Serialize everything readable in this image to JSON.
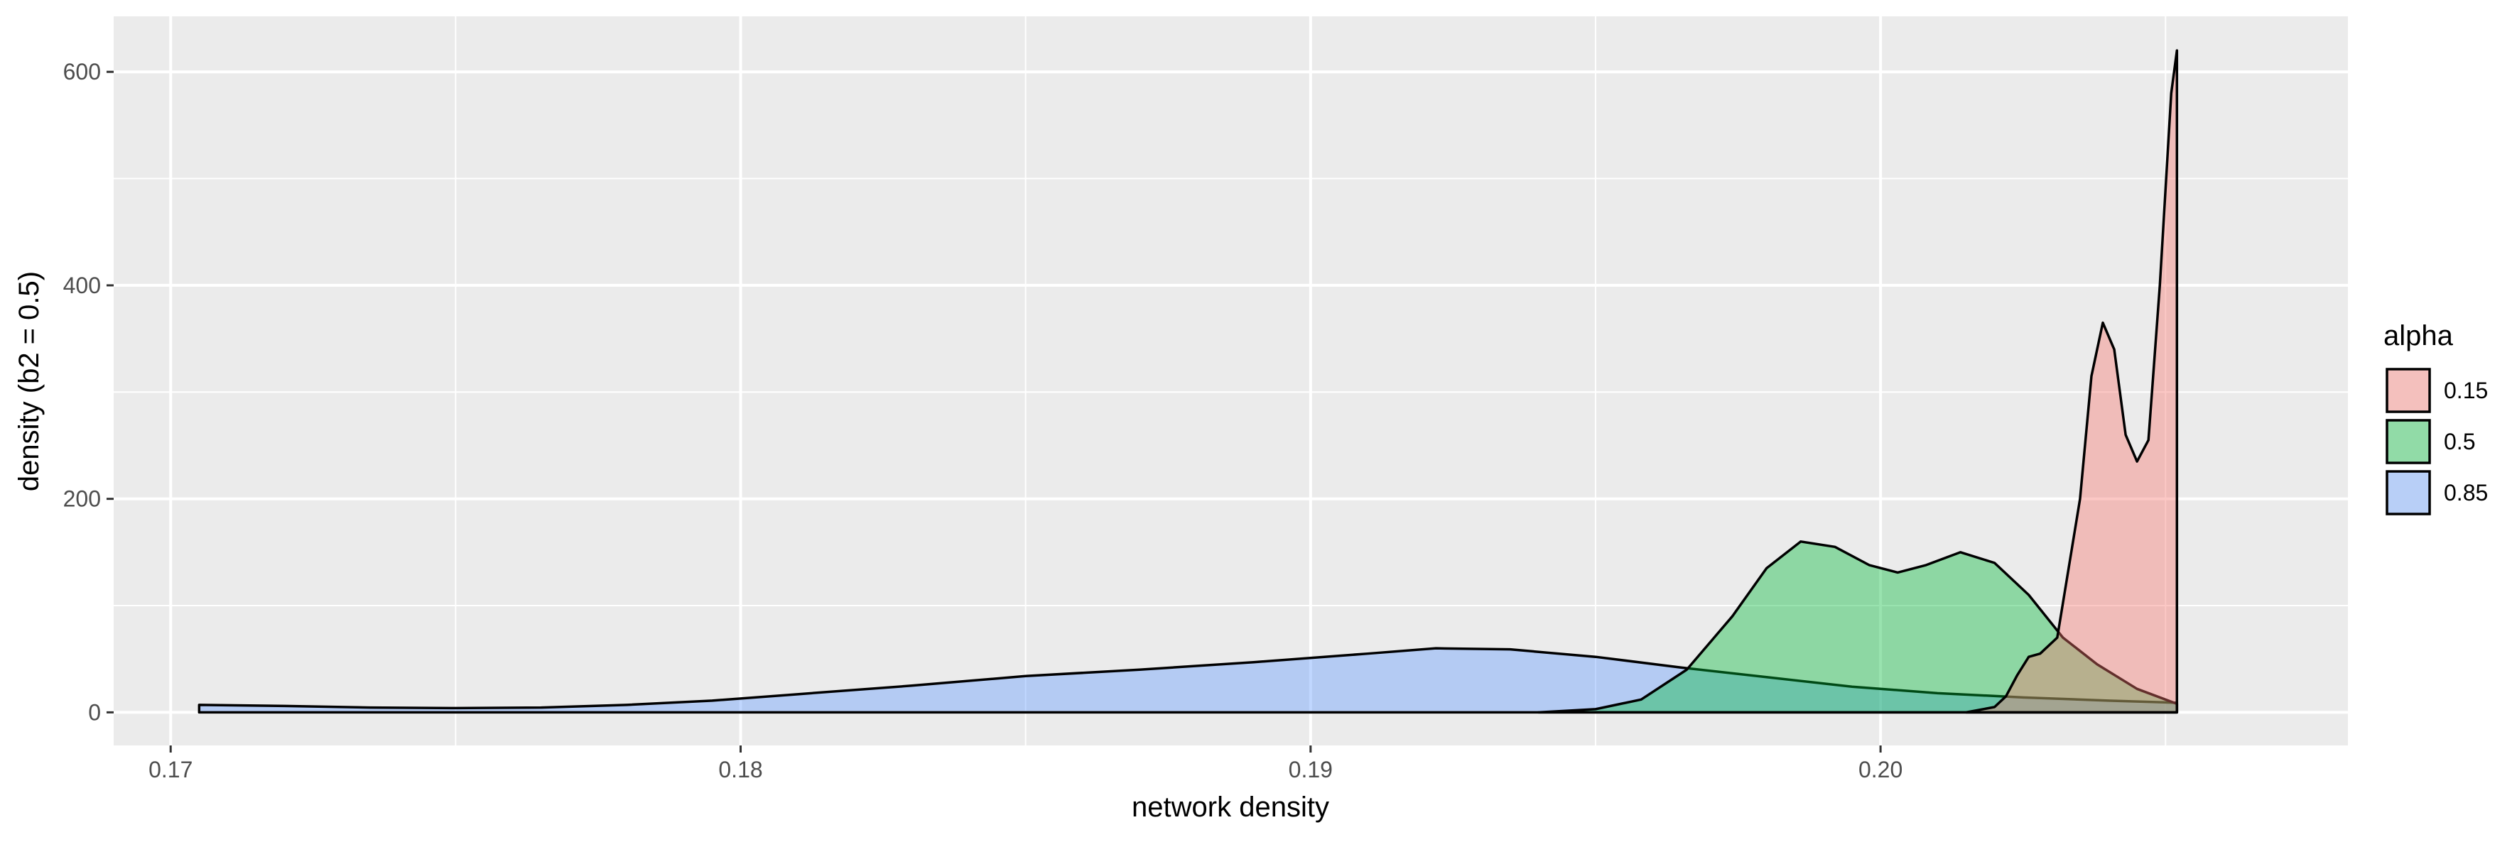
{
  "chart_data": {
    "type": "area",
    "xlabel": "network density",
    "ylabel": "density (b2 = 0.5)",
    "xlim": [
      0.169,
      0.2082
    ],
    "ylim": [
      -31,
      652
    ],
    "x_ticks": [
      0.17,
      0.18,
      0.19,
      0.2
    ],
    "x_tick_labels": [
      "0.17",
      "0.18",
      "0.19",
      "0.20"
    ],
    "y_ticks": [
      0,
      200,
      400,
      600
    ],
    "y_tick_labels": [
      "0",
      "200",
      "400",
      "600"
    ],
    "grid": true,
    "legend": {
      "title": "alpha",
      "position": "right"
    },
    "series": [
      {
        "name": "0.85",
        "color": "#619CFF",
        "points": [
          [
            0.1705,
            7
          ],
          [
            0.172,
            6
          ],
          [
            0.1735,
            4.5
          ],
          [
            0.175,
            4
          ],
          [
            0.1765,
            4.5
          ],
          [
            0.178,
            7
          ],
          [
            0.1795,
            11
          ],
          [
            0.181,
            17
          ],
          [
            0.183,
            25
          ],
          [
            0.185,
            34
          ],
          [
            0.187,
            40
          ],
          [
            0.189,
            47
          ],
          [
            0.191,
            55
          ],
          [
            0.1922,
            60
          ],
          [
            0.1935,
            59
          ],
          [
            0.195,
            52
          ],
          [
            0.1965,
            42
          ],
          [
            0.198,
            33
          ],
          [
            0.1995,
            24
          ],
          [
            0.201,
            18
          ],
          [
            0.2025,
            14
          ],
          [
            0.204,
            11
          ],
          [
            0.2052,
            9
          ]
        ]
      },
      {
        "name": "0.5",
        "color": "#00BA38",
        "points": [
          [
            0.194,
            0
          ],
          [
            0.195,
            3
          ],
          [
            0.1958,
            12
          ],
          [
            0.1966,
            40
          ],
          [
            0.1974,
            90
          ],
          [
            0.198,
            135
          ],
          [
            0.1986,
            160
          ],
          [
            0.1992,
            155
          ],
          [
            0.1998,
            138
          ],
          [
            0.2003,
            131
          ],
          [
            0.2008,
            138
          ],
          [
            0.2014,
            150
          ],
          [
            0.202,
            140
          ],
          [
            0.2026,
            110
          ],
          [
            0.2032,
            70
          ],
          [
            0.2038,
            45
          ],
          [
            0.2045,
            22
          ],
          [
            0.2052,
            8
          ]
        ]
      },
      {
        "name": "0.15",
        "color": "#F8766D",
        "points": [
          [
            0.2015,
            0
          ],
          [
            0.202,
            5
          ],
          [
            0.2022,
            15
          ],
          [
            0.2024,
            35
          ],
          [
            0.2026,
            52
          ],
          [
            0.2028,
            55
          ],
          [
            0.2031,
            70
          ],
          [
            0.2035,
            200
          ],
          [
            0.2037,
            315
          ],
          [
            0.2039,
            365
          ],
          [
            0.2041,
            340
          ],
          [
            0.2043,
            260
          ],
          [
            0.2045,
            235
          ],
          [
            0.2047,
            255
          ],
          [
            0.2049,
            400
          ],
          [
            0.2051,
            580
          ],
          [
            0.2052,
            620
          ]
        ]
      }
    ]
  }
}
